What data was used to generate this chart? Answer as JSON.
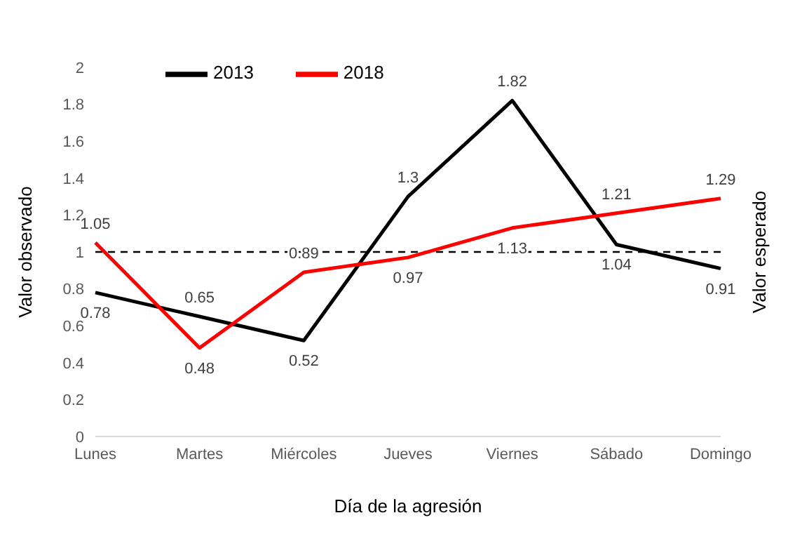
{
  "chart_data": {
    "type": "line",
    "xlabel": "Día de la agresión",
    "ylabel": "Valor observado",
    "categories": [
      "Lunes",
      "Martes",
      "Miércoles",
      "Jueves",
      "Viernes",
      "Sábado",
      "Domingo"
    ],
    "series": [
      {
        "name": "2013",
        "color": "#000000",
        "values": [
          0.78,
          0.65,
          0.52,
          1.3,
          1.82,
          1.04,
          0.91
        ]
      },
      {
        "name": "2018",
        "color": "#ff0000",
        "values": [
          1.05,
          0.48,
          0.89,
          0.97,
          1.13,
          1.21,
          1.29
        ]
      }
    ],
    "ylim": [
      0,
      2
    ],
    "yticks": [
      0,
      0.2,
      0.4,
      0.6,
      0.8,
      1,
      1.2,
      1.4,
      1.6,
      1.8,
      2
    ],
    "ref_lines": [
      {
        "axis": "y",
        "value": 1,
        "label": "Valor esperado",
        "color": "#000000",
        "line_style": "dashed"
      }
    ],
    "data_labels": true,
    "legend": "top left",
    "marker": "none",
    "line_style": "solid"
  }
}
